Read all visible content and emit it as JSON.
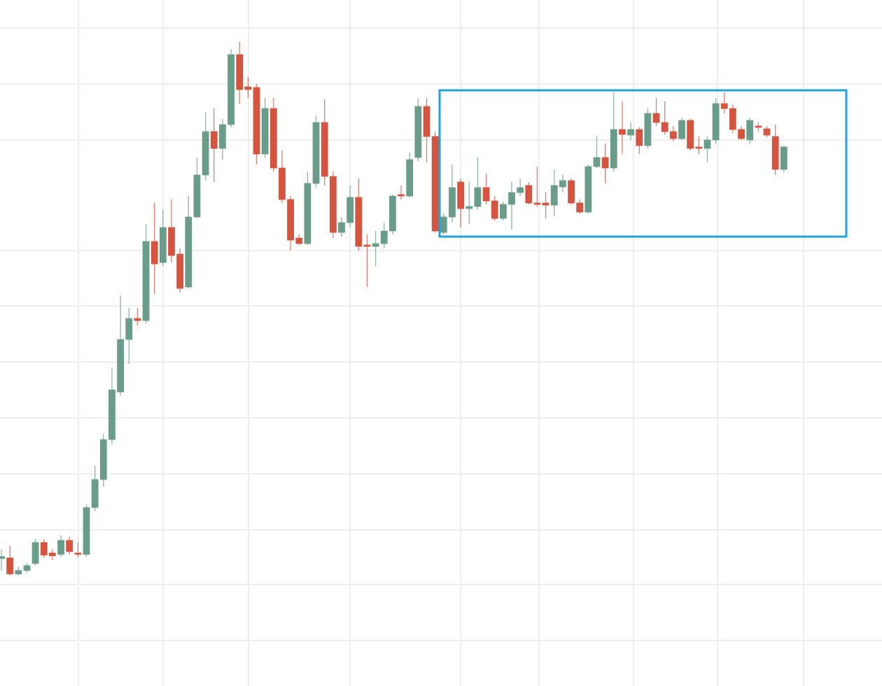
{
  "chart_data": {
    "type": "candlestick",
    "ylim": [
      0,
      980
    ],
    "up_color": "#6a9d89",
    "down_color": "#d5543f",
    "open": [
      182,
      183,
      160,
      165,
      175,
      205,
      190,
      188,
      208,
      190,
      188,
      255,
      295,
      352,
      420,
      495,
      525,
      522,
      635,
      605,
      655,
      617,
      570,
      670,
      730,
      792,
      768,
      802,
      902,
      856,
      855,
      760,
      825,
      740,
      695,
      640,
      632,
      718,
      805,
      728,
      648,
      662,
      698,
      630,
      628,
      632,
      650,
      702,
      700,
      755,
      828,
      785,
      648,
      670,
      720,
      682,
      685,
      712,
      693,
      668,
      688,
      705,
      715,
      690,
      690,
      687,
      713,
      722,
      690,
      677,
      742,
      755,
      740,
      795,
      787,
      795,
      772,
      818,
      805,
      792,
      782,
      808,
      770,
      768,
      780,
      832,
      825,
      795,
      780,
      800,
      796,
      785,
      738
    ],
    "high": [
      195,
      200,
      170,
      175,
      210,
      210,
      195,
      215,
      213,
      205,
      260,
      315,
      360,
      455,
      558,
      540,
      540,
      660,
      690,
      680,
      695,
      625,
      700,
      755,
      820,
      825,
      810,
      910,
      920,
      870,
      860,
      840,
      840,
      765,
      700,
      645,
      735,
      815,
      838,
      735,
      670,
      715,
      725,
      645,
      650,
      662,
      702,
      715,
      762,
      840,
      840,
      792,
      675,
      745,
      725,
      720,
      755,
      732,
      700,
      692,
      720,
      725,
      720,
      742,
      705,
      738,
      730,
      725,
      695,
      745,
      785,
      775,
      848,
      835,
      805,
      798,
      825,
      840,
      835,
      800,
      812,
      810,
      785,
      785,
      840,
      848,
      830,
      800,
      812,
      805,
      800,
      802,
      772
    ],
    "low": [
      165,
      158,
      158,
      162,
      172,
      184,
      180,
      184,
      188,
      184,
      185,
      250,
      285,
      345,
      415,
      460,
      515,
      518,
      560,
      600,
      605,
      562,
      568,
      668,
      722,
      720,
      752,
      798,
      832,
      840,
      745,
      755,
      735,
      690,
      622,
      630,
      630,
      712,
      715,
      640,
      642,
      655,
      622,
      570,
      600,
      625,
      645,
      695,
      698,
      750,
      748,
      648,
      645,
      662,
      655,
      660,
      680,
      688,
      665,
      665,
      652,
      700,
      688,
      685,
      668,
      672,
      705,
      688,
      675,
      675,
      740,
      718,
      735,
      760,
      780,
      760,
      768,
      800,
      788,
      778,
      780,
      765,
      760,
      748,
      775,
      818,
      790,
      780,
      775,
      792,
      784,
      730,
      734
    ],
    "close": [
      185,
      160,
      165,
      172,
      205,
      187,
      186,
      208,
      192,
      188,
      255,
      295,
      352,
      423,
      495,
      525,
      522,
      635,
      603,
      655,
      615,
      568,
      670,
      730,
      792,
      768,
      802,
      902,
      852,
      852,
      760,
      825,
      740,
      695,
      637,
      632,
      718,
      805,
      728,
      648,
      662,
      698,
      628,
      628,
      632,
      650,
      700,
      700,
      752,
      828,
      785,
      650,
      670,
      712,
      682,
      685,
      712,
      693,
      668,
      688,
      705,
      712,
      690,
      688,
      687,
      715,
      722,
      690,
      677,
      742,
      755,
      740,
      795,
      788,
      795,
      772,
      818,
      805,
      792,
      782,
      808,
      768,
      768,
      780,
      832,
      825,
      795,
      782,
      808,
      798,
      787,
      738,
      770
    ]
  }
}
